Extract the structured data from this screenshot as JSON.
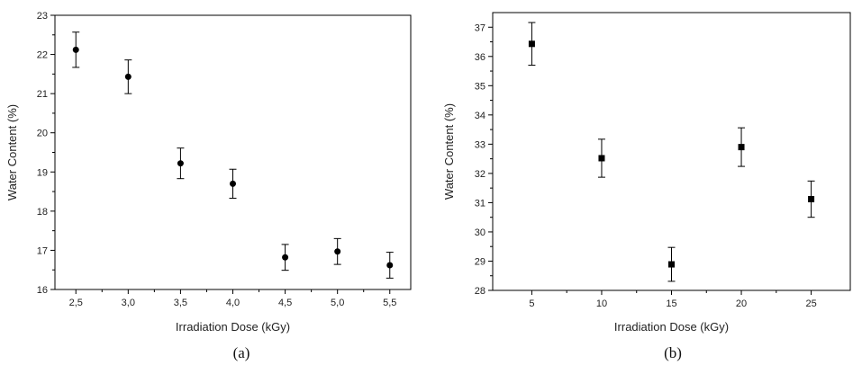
{
  "chart_data": [
    {
      "type": "scatter",
      "panel_label": "(a)",
      "xlabel": "Irradiation Dose (kGy)",
      "ylabel": "Water Content (%)",
      "xlim": [
        2.3,
        5.7
      ],
      "ylim": [
        16,
        23
      ],
      "x_ticks": [
        2.5,
        3.0,
        3.5,
        4.0,
        4.5,
        5.0,
        5.5
      ],
      "x_tick_labels": [
        "2,5",
        "3,0",
        "3,5",
        "4,0",
        "4,5",
        "5,0",
        "5,5"
      ],
      "y_ticks": [
        16,
        17,
        18,
        19,
        20,
        21,
        22,
        23
      ],
      "y_tick_labels": [
        "16",
        "17",
        "18",
        "19",
        "20",
        "21",
        "22",
        "23"
      ],
      "marker": "circle",
      "marker_color": "#000000",
      "grid": false,
      "points": [
        {
          "x": 2.5,
          "y": 22.12,
          "err": 0.45
        },
        {
          "x": 3.0,
          "y": 21.43,
          "err": 0.43
        },
        {
          "x": 3.5,
          "y": 19.22,
          "err": 0.39
        },
        {
          "x": 4.0,
          "y": 18.7,
          "err": 0.37
        },
        {
          "x": 4.5,
          "y": 16.82,
          "err": 0.33
        },
        {
          "x": 5.0,
          "y": 16.97,
          "err": 0.33
        },
        {
          "x": 5.5,
          "y": 16.62,
          "err": 0.33
        }
      ]
    },
    {
      "type": "scatter",
      "panel_label": "(b)",
      "xlabel": "Irradiation Dose (kGy)",
      "ylabel": "Water Content (%)",
      "xlim": [
        2.2,
        27.8
      ],
      "ylim": [
        28,
        37.5
      ],
      "x_ticks": [
        5,
        10,
        15,
        20,
        25
      ],
      "x_tick_labels": [
        "5",
        "10",
        "15",
        "20",
        "25"
      ],
      "y_ticks": [
        28,
        29,
        30,
        31,
        32,
        33,
        34,
        35,
        36,
        37
      ],
      "y_tick_labels": [
        "28",
        "29",
        "30",
        "31",
        "32",
        "33",
        "34",
        "35",
        "36",
        "37"
      ],
      "marker": "square",
      "marker_color": "#000000",
      "grid": false,
      "points": [
        {
          "x": 5,
          "y": 36.43,
          "err": 0.73
        },
        {
          "x": 10,
          "y": 32.52,
          "err": 0.65
        },
        {
          "x": 15,
          "y": 28.89,
          "err": 0.58
        },
        {
          "x": 20,
          "y": 32.9,
          "err": 0.66
        },
        {
          "x": 25,
          "y": 31.12,
          "err": 0.62
        }
      ]
    }
  ]
}
